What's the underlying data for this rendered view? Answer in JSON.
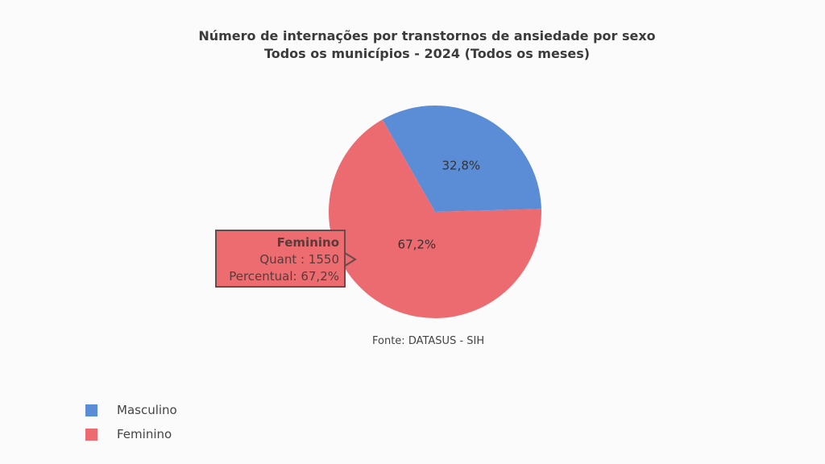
{
  "chart_data": {
    "type": "pie",
    "title": "Número de internações por transtornos de ansiedade por sexo",
    "subtitle": "Todos os municípios - 2024 (Todos os meses)",
    "source": "Fonte: DATASUS - SIH",
    "legend_position": "bottom-left",
    "slices": [
      {
        "name": "Masculino",
        "percent": 32.8,
        "label": "32,8%",
        "color": "#5b8dd6"
      },
      {
        "name": "Feminino",
        "percent": 67.2,
        "label": "67,2%",
        "color": "#ec6b70"
      }
    ],
    "tooltip": {
      "title": "Feminino",
      "quant": "Quant : 1550",
      "percent": "Percentual: 67,2%"
    }
  }
}
